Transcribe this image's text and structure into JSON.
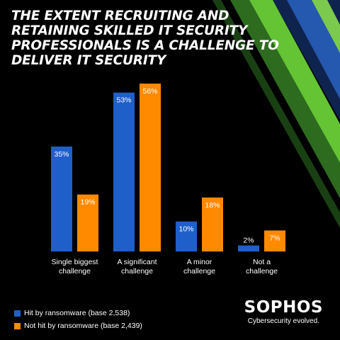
{
  "title": "THE EXTENT RECRUITING AND RETAINING SKILLED IT SECURITY PROFESSIONALS IS A CHALLENGE TO DELIVER IT SECURITY",
  "brand": {
    "name": "SOPHOS",
    "tagline": "Cybersecurity evolved."
  },
  "colors": {
    "background": "#000000",
    "hit": "#1f5fc9",
    "not_hit": "#ff8a00",
    "stripe_green": "#6fd93a",
    "stripe_blue": "#1f5fc9"
  },
  "chart_data": {
    "type": "bar",
    "categories": [
      [
        "Single biggest",
        "challenge"
      ],
      [
        "A significant",
        "challenge"
      ],
      [
        "A minor",
        "challenge"
      ],
      [
        "Not a",
        "challenge"
      ]
    ],
    "series": [
      {
        "name": "Hit by ransomware (base 2,538)",
        "values": [
          35,
          53,
          10,
          2
        ],
        "labels": [
          "35%",
          "53%",
          "10%",
          "2%"
        ],
        "color": "#1f5fc9"
      },
      {
        "name": "Not hit by ransomware (base 2,439)",
        "values": [
          19,
          56,
          18,
          7
        ],
        "labels": [
          "19%",
          "56%",
          "18%",
          "7%"
        ],
        "color": "#ff8a00"
      }
    ],
    "ylim": [
      0,
      56
    ],
    "grid": false,
    "legend_position": "bottom-left"
  }
}
